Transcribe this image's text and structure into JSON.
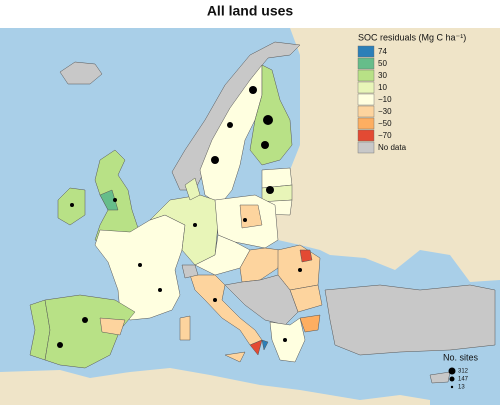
{
  "title": "All land uses",
  "legend": {
    "title": "SOC residuals (Mg C ha⁻¹)",
    "items": [
      {
        "label": "74",
        "color": "#2c7fb8"
      },
      {
        "label": "50",
        "color": "#66bd8a"
      },
      {
        "label": "30",
        "color": "#b8e186"
      },
      {
        "label": "10",
        "color": "#e8f5b8"
      },
      {
        "label": "−10",
        "color": "#ffffe0"
      },
      {
        "label": "−30",
        "color": "#fdd49e"
      },
      {
        "label": "−50",
        "color": "#fdae61"
      },
      {
        "label": "−70",
        "color": "#e34a33"
      },
      {
        "label": "No data",
        "color": "#c8c8c8"
      }
    ]
  },
  "sites_legend": {
    "title": "No. sites",
    "items": [
      "312",
      "147",
      "13"
    ]
  }
}
